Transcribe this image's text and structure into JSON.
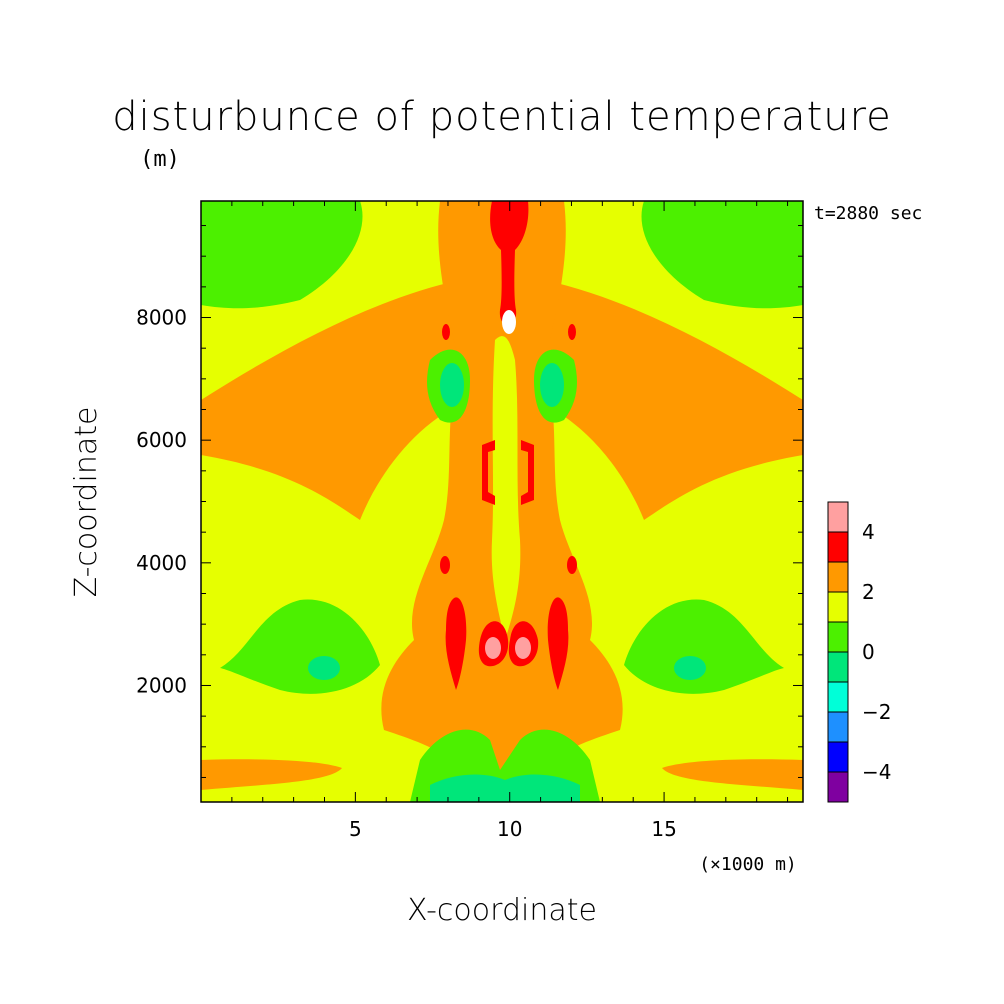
{
  "chart_data": {
    "type": "heatmap",
    "title": "disturbunce of potential temperature",
    "title_unit": "(m)",
    "time_label": "t=2880 sec",
    "xlabel": "X-coordinate",
    "x_unit_label": "(×1000 m)",
    "ylabel": "Z-coordinate",
    "xlim": [
      0,
      19.5
    ],
    "ylim": [
      100,
      9900
    ],
    "x_ticks": [
      5,
      10,
      15
    ],
    "x_tick_labels": [
      "5",
      "10",
      "15"
    ],
    "y_ticks": [
      2000,
      4000,
      6000,
      8000
    ],
    "y_tick_labels": [
      "2000",
      "4000",
      "6000",
      "8000"
    ],
    "colorbar": {
      "levels": [
        -5,
        -4,
        -3,
        -2,
        -1,
        0,
        1,
        2,
        3,
        4,
        5
      ],
      "colors": [
        "#7f00a0",
        "#0000ff",
        "#1e90ff",
        "#00ffd8",
        "#00e67a",
        "#4cf000",
        "#e6ff00",
        "#ff9900",
        "#ff0000",
        "#ffa0a0"
      ],
      "tick_values": [
        -4,
        -2,
        0,
        2,
        4
      ],
      "tick_labels": [
        "−4",
        "−2",
        "0",
        "2",
        "4"
      ]
    },
    "colors": {
      "level_0_1": "#4cf000",
      "level_1_2": "#e6ff00",
      "level_2_3": "#ff9900",
      "level_3_4": "#ff0000",
      "level_4_5": "#ffa0a0",
      "level_m1_0": "#00e67a",
      "level_gt_5": "#ffffff"
    }
  }
}
